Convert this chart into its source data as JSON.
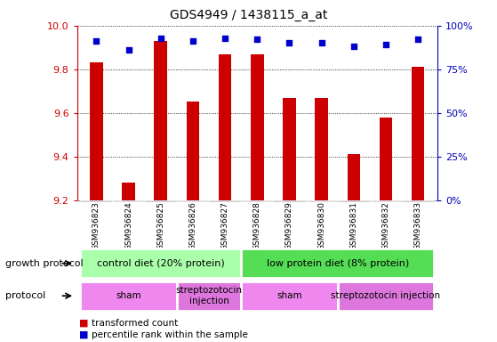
{
  "title": "GDS4949 / 1438115_a_at",
  "samples": [
    "GSM936823",
    "GSM936824",
    "GSM936825",
    "GSM936826",
    "GSM936827",
    "GSM936828",
    "GSM936829",
    "GSM936830",
    "GSM936831",
    "GSM936832",
    "GSM936833"
  ],
  "transformed_count": [
    9.83,
    9.28,
    9.93,
    9.65,
    9.87,
    9.87,
    9.67,
    9.67,
    9.41,
    9.58,
    9.81
  ],
  "percentile_rank": [
    91,
    86,
    93,
    91,
    93,
    92,
    90,
    90,
    88,
    89,
    92
  ],
  "ylim_left": [
    9.2,
    10.0
  ],
  "ylim_right": [
    0,
    100
  ],
  "yticks_left": [
    9.2,
    9.4,
    9.6,
    9.8,
    10.0
  ],
  "yticks_right": [
    0,
    25,
    50,
    75,
    100
  ],
  "bar_color": "#cc0000",
  "dot_color": "#0000cc",
  "growth_protocol_groups": [
    {
      "label": "control diet (20% protein)",
      "start": 0,
      "end": 4,
      "color": "#aaffaa"
    },
    {
      "label": "low protein diet (8% protein)",
      "start": 5,
      "end": 10,
      "color": "#55dd55"
    }
  ],
  "protocol_groups": [
    {
      "label": "sham",
      "start": 0,
      "end": 2,
      "color": "#ee88ee"
    },
    {
      "label": "streptozotocin\ninjection",
      "start": 3,
      "end": 4,
      "color": "#dd77dd"
    },
    {
      "label": "sham",
      "start": 5,
      "end": 7,
      "color": "#ee88ee"
    },
    {
      "label": "streptozotocin injection",
      "start": 8,
      "end": 10,
      "color": "#dd77dd"
    }
  ],
  "legend_items": [
    {
      "label": "transformed count",
      "color": "#cc0000"
    },
    {
      "label": "percentile rank within the sample",
      "color": "#0000cc"
    }
  ],
  "left_axis_color": "#cc0000",
  "right_axis_color": "#0000bb",
  "sample_bg_color": "#cccccc",
  "sample_bg_color2": "#dddddd"
}
